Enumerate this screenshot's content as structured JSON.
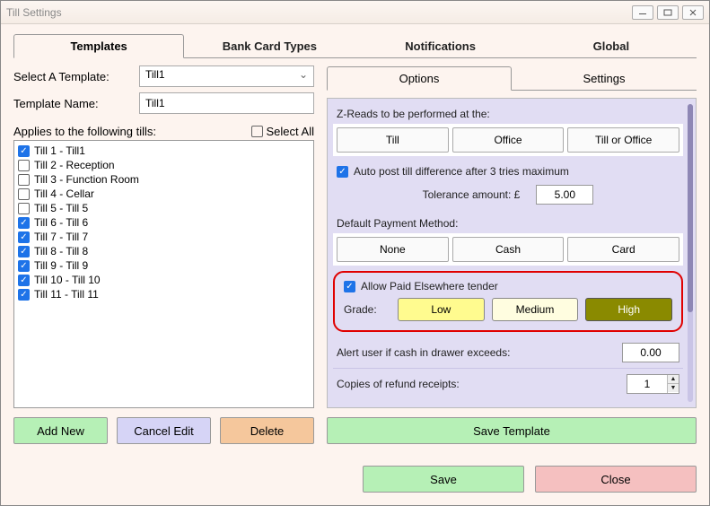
{
  "window": {
    "title": "Till Settings"
  },
  "tabs": {
    "templates": "Templates",
    "bank_card": "Bank Card Types",
    "notifications": "Notifications",
    "global": "Global",
    "active": "templates"
  },
  "left": {
    "select_label": "Select A Template:",
    "select_value": "Till1",
    "name_label": "Template Name:",
    "name_value": "Till1",
    "applies_label": "Applies to the following tills:",
    "select_all_label": "Select All",
    "select_all_checked": false,
    "tills": [
      {
        "label": "Till 1 - Till1",
        "checked": true
      },
      {
        "label": "Till 2 - Reception",
        "checked": false
      },
      {
        "label": "Till 3 - Function Room",
        "checked": false
      },
      {
        "label": "Till 4 - Cellar",
        "checked": false
      },
      {
        "label": "Till 5 - Till 5",
        "checked": false
      },
      {
        "label": "Till 6 - Till 6",
        "checked": true
      },
      {
        "label": "Till 7 - Till 7",
        "checked": true
      },
      {
        "label": "Till 8 - Till 8",
        "checked": true
      },
      {
        "label": "Till 9 - Till 9",
        "checked": true
      },
      {
        "label": "Till 10 - Till 10",
        "checked": true
      },
      {
        "label": "Till 11 - Till 11",
        "checked": true
      }
    ],
    "buttons": {
      "add_new": "Add New",
      "cancel_edit": "Cancel Edit",
      "delete": "Delete"
    }
  },
  "right": {
    "sub_tabs": {
      "options": "Options",
      "settings": "Settings",
      "active": "options"
    },
    "zreads_label": "Z-Reads to be performed at the:",
    "zreads": {
      "till": "Till",
      "office": "Office",
      "till_or_office": "Till or Office"
    },
    "auto_post": {
      "checked": true,
      "label": "Auto post till difference after 3 tries maximum"
    },
    "tolerance": {
      "label": "Tolerance amount: £",
      "value": "5.00"
    },
    "payment_label": "Default Payment Method:",
    "payment": {
      "none": "None",
      "cash": "Cash",
      "card": "Card"
    },
    "allow_paid": {
      "checked": true,
      "label": "Allow Paid Elsewhere tender"
    },
    "grade": {
      "label": "Grade:",
      "low": "Low",
      "medium": "Medium",
      "high": "High",
      "selected": "high"
    },
    "alert": {
      "label": "Alert user if cash in drawer exceeds:",
      "value": "0.00"
    },
    "receipts": {
      "label": "Copies of refund receipts:",
      "value": "1"
    },
    "save_template": "Save Template"
  },
  "footer": {
    "save": "Save",
    "close": "Close"
  },
  "colors": {
    "window_bg": "#fdf4ef",
    "panel_bg": "#e1ddf3",
    "btn_green": "#b6f0b6",
    "btn_lavender": "#d6d4f6",
    "btn_orange": "#f5c79c",
    "btn_pink": "#f5c0c0",
    "grade_low": "#fffb8f",
    "grade_med": "#fffde0",
    "grade_high": "#8a8a00",
    "highlight_border": "#e00000",
    "checkbox_blue": "#1e73e8"
  }
}
